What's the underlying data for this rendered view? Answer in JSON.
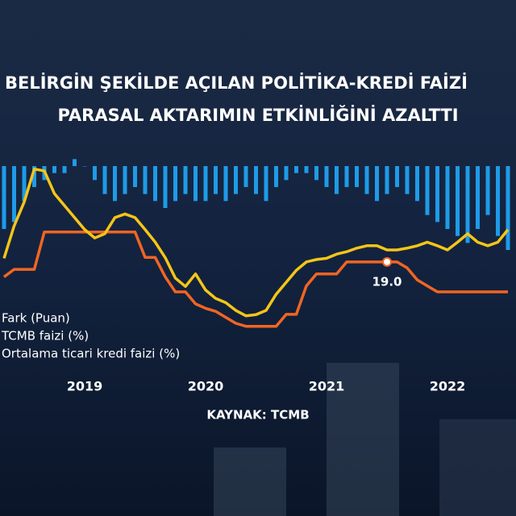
{
  "chart_data": {
    "type": "combo",
    "title": "BELİRGİN ŞEKİLDE AÇILAN POLİTİKA-KREDİ FAİZİ",
    "subtitle": "PARASAL AKTARIMIN ETKİNLİĞİNİ AZALTTI",
    "source": "KAYNAK: TCMB",
    "categories": [
      null,
      null,
      null,
      null,
      null,
      null,
      null,
      null,
      "2019",
      null,
      null,
      null,
      null,
      null,
      null,
      null,
      null,
      null,
      null,
      null,
      "2020",
      null,
      null,
      null,
      null,
      null,
      null,
      null,
      null,
      null,
      null,
      null,
      "2021",
      null,
      null,
      null,
      null,
      null,
      null,
      null,
      null,
      null,
      null,
      null,
      "2022",
      null,
      null,
      null,
      null,
      null,
      null
    ],
    "ylim": [
      0,
      38.5
    ],
    "y2lim": [
      -3,
      30
    ],
    "series": [
      {
        "name": "Fark (Puan)",
        "type": "bar",
        "axis": "y2",
        "color": "#1e9be8",
        "values": [
          9,
          8,
          5,
          3,
          2,
          1,
          1,
          -1,
          0,
          2,
          4,
          5,
          4,
          3,
          4,
          5,
          6,
          5,
          4,
          5,
          5,
          4,
          5,
          4,
          3,
          4,
          5,
          3,
          2,
          1,
          1,
          2,
          3,
          4,
          3,
          3,
          4,
          5,
          4,
          3,
          4,
          5,
          7,
          8,
          9,
          10,
          11,
          9,
          7,
          10,
          12
        ]
      },
      {
        "name": "TCMB faizi (%)",
        "type": "line",
        "color": "#f26522",
        "values": [
          16.5,
          17.75,
          17.75,
          17.75,
          24,
          24,
          24,
          24,
          24,
          24,
          24,
          24,
          24,
          24,
          19.75,
          19.75,
          16.5,
          14,
          14,
          12,
          11.25,
          10.75,
          9.75,
          8.75,
          8.25,
          8.25,
          8.25,
          8.25,
          10.25,
          10.25,
          15,
          17,
          17,
          17,
          19,
          19,
          19,
          19,
          19,
          19,
          18,
          16,
          15,
          14,
          14,
          14,
          14,
          14,
          14,
          14,
          14
        ],
        "value_labels": [
          null,
          null,
          null,
          null,
          null,
          null,
          null,
          null,
          null,
          null,
          null,
          null,
          null,
          null,
          null,
          null,
          null,
          null,
          null,
          null,
          null,
          null,
          null,
          null,
          null,
          null,
          null,
          null,
          null,
          null,
          null,
          null,
          null,
          null,
          null,
          null,
          null,
          null,
          "19.0",
          null,
          null,
          null,
          null,
          null,
          null,
          null,
          null,
          null,
          null,
          null,
          null
        ]
      },
      {
        "name": "Ortalama ticari kredi faizi (%)",
        "type": "line",
        "color": "#f5c518",
        "values": [
          19.6,
          25,
          29,
          34.5,
          34.2,
          30.4,
          28.4,
          26.4,
          24.4,
          23,
          23.7,
          26.4,
          27,
          26.4,
          24.4,
          22.3,
          19.7,
          16.3,
          14.9,
          17,
          14.3,
          12.9,
          12.2,
          10.9,
          10,
          10.2,
          10.9,
          13.6,
          15.6,
          17.6,
          19,
          19.4,
          19.6,
          20.3,
          20.7,
          21.3,
          21.7,
          21.7,
          21,
          21,
          21.3,
          21.7,
          22.3,
          21.7,
          21,
          22.3,
          23.7,
          22.3,
          21.7,
          22.3,
          24.4
        ]
      }
    ]
  }
}
